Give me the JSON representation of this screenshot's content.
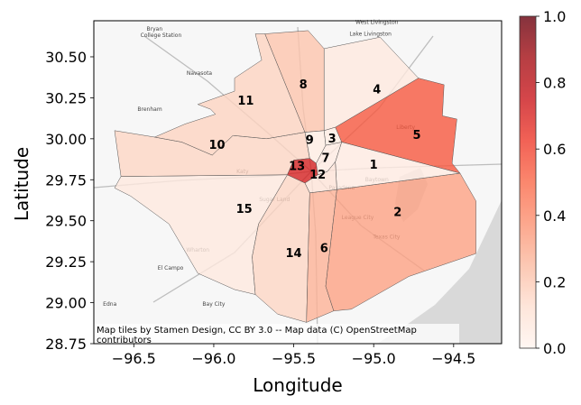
{
  "chart_data": {
    "type": "choropleth",
    "xlabel": "Longitude",
    "ylabel": "Latitude",
    "xlim": [
      -96.75,
      -94.2
    ],
    "ylim": [
      28.75,
      30.72
    ],
    "x_ticks": [
      -96.5,
      -96.0,
      -95.5,
      -95.0,
      -94.5
    ],
    "x_tick_labels": [
      "−96.5",
      "−96.0",
      "−95.5",
      "−95.0",
      "−94.5"
    ],
    "y_ticks": [
      28.75,
      29.0,
      29.25,
      29.5,
      29.75,
      30.0,
      30.25,
      30.5
    ],
    "y_tick_labels": [
      "28.75",
      "29.00",
      "29.25",
      "29.50",
      "29.75",
      "30.00",
      "30.25",
      "30.50"
    ],
    "colorbar": {
      "colormap": "Reds",
      "range": [
        0.0,
        1.0
      ],
      "ticks": [
        0.0,
        0.2,
        0.4,
        0.6,
        0.8,
        1.0
      ],
      "tick_labels": [
        "0.0",
        "0.2",
        "0.4",
        "0.6",
        "0.8",
        "1.0"
      ]
    },
    "regions": [
      {
        "label": "1",
        "value": 0.06
      },
      {
        "label": "2",
        "value": 0.33
      },
      {
        "label": "3",
        "value": 0.05
      },
      {
        "label": "4",
        "value": 0.07
      },
      {
        "label": "5",
        "value": 0.55
      },
      {
        "label": "6",
        "value": 0.28
      },
      {
        "label": "7",
        "value": 0.06
      },
      {
        "label": "8",
        "value": 0.22
      },
      {
        "label": "9",
        "value": 0.05
      },
      {
        "label": "10",
        "value": 0.16
      },
      {
        "label": "11",
        "value": 0.17
      },
      {
        "label": "12",
        "value": 0.1
      },
      {
        "label": "13",
        "value": 0.72
      },
      {
        "label": "14",
        "value": 0.16
      },
      {
        "label": "15",
        "value": 0.07
      }
    ],
    "basemap_places": [
      "Bryan",
      "College Station",
      "West Livingston",
      "Lake Livingston",
      "Navasota",
      "Brenham",
      "Wharton",
      "El Campo",
      "Edna",
      "Bay City",
      "Liberty",
      "Pasadena",
      "Texas City",
      "League City",
      "Katy",
      "Sugar Land",
      "Baytown"
    ],
    "attribution": [
      "Map tiles by Stamen Design, CC BY 3.0 -- Map data (C) OpenStreetMap",
      "contributors"
    ]
  }
}
